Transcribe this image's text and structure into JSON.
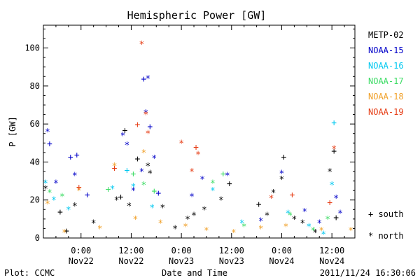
{
  "chart_data": {
    "type": "scatter",
    "title": "Hemispheric Power [GW]",
    "ylabel": "P [GW]",
    "xlabel": "Date and Time",
    "footer_left": "Plot: CCMC",
    "footer_right": "2011/11/24 16:30:06",
    "ylim": [
      0,
      112
    ],
    "xlim": [
      "2011-11-21T15:00",
      "2011-11-24T17:30"
    ],
    "yticks": [
      0,
      20,
      40,
      60,
      80,
      100
    ],
    "xticks": [
      {
        "time": "2011-11-22T00:00",
        "line1": "0:00",
        "line2": "Nov22"
      },
      {
        "time": "2011-11-22T12:00",
        "line1": "12:00",
        "line2": "Nov22"
      },
      {
        "time": "2011-11-23T00:00",
        "line1": "0:00",
        "line2": "Nov23"
      },
      {
        "time": "2011-11-23T12:00",
        "line1": "12:00",
        "line2": "Nov23"
      },
      {
        "time": "2011-11-24T00:00",
        "line1": "0:00",
        "line2": "Nov24"
      },
      {
        "time": "2011-11-24T12:00",
        "line1": "12:00",
        "line2": "Nov24"
      }
    ],
    "markers": {
      "south": "+",
      "north": "*"
    },
    "marker_legend": [
      {
        "symbol": "+",
        "label": "south"
      },
      {
        "symbol": "*",
        "label": "north"
      }
    ],
    "series": [
      {
        "name": "METP-02",
        "color": "#000000",
        "points": [
          {
            "t": "2011-11-21T15:30",
            "p": 26,
            "hemi": "north"
          },
          {
            "t": "2011-11-21T19:00",
            "p": 14,
            "hemi": "south"
          },
          {
            "t": "2011-11-21T20:30",
            "p": 4,
            "hemi": "south"
          },
          {
            "t": "2011-11-21T22:30",
            "p": 17,
            "hemi": "north"
          },
          {
            "t": "2011-11-22T03:00",
            "p": 8,
            "hemi": "north"
          },
          {
            "t": "2011-11-22T08:30",
            "p": 20,
            "hemi": "north"
          },
          {
            "t": "2011-11-22T09:30",
            "p": 22,
            "hemi": "south"
          },
          {
            "t": "2011-11-22T10:30",
            "p": 57,
            "hemi": "south"
          },
          {
            "t": "2011-11-22T11:30",
            "p": 17,
            "hemi": "north"
          },
          {
            "t": "2011-11-22T13:30",
            "p": 42,
            "hemi": "south"
          },
          {
            "t": "2011-11-22T16:00",
            "p": 38,
            "hemi": "north"
          },
          {
            "t": "2011-11-22T16:30",
            "p": 34,
            "hemi": "north"
          },
          {
            "t": "2011-11-22T19:30",
            "p": 16,
            "hemi": "north"
          },
          {
            "t": "2011-11-22T22:30",
            "p": 5,
            "hemi": "north"
          },
          {
            "t": "2011-11-23T01:30",
            "p": 10,
            "hemi": "north"
          },
          {
            "t": "2011-11-23T03:00",
            "p": 12,
            "hemi": "north"
          },
          {
            "t": "2011-11-23T05:30",
            "p": 15,
            "hemi": "north"
          },
          {
            "t": "2011-11-23T09:30",
            "p": 20,
            "hemi": "north"
          },
          {
            "t": "2011-11-23T11:30",
            "p": 29,
            "hemi": "south"
          },
          {
            "t": "2011-11-23T18:30",
            "p": 18,
            "hemi": "south"
          },
          {
            "t": "2011-11-23T22:00",
            "p": 24,
            "hemi": "north"
          },
          {
            "t": "2011-11-23T20:30",
            "p": 12,
            "hemi": "north"
          },
          {
            "t": "2011-11-24T00:00",
            "p": 31,
            "hemi": "north"
          },
          {
            "t": "2011-11-24T00:30",
            "p": 43,
            "hemi": "south"
          },
          {
            "t": "2011-11-24T03:00",
            "p": 10,
            "hemi": "north"
          },
          {
            "t": "2011-11-24T05:00",
            "p": 8,
            "hemi": "north"
          },
          {
            "t": "2011-11-24T08:00",
            "p": 3,
            "hemi": "north"
          },
          {
            "t": "2011-11-24T11:30",
            "p": 35,
            "hemi": "north"
          },
          {
            "t": "2011-11-24T12:30",
            "p": 46,
            "hemi": "south"
          },
          {
            "t": "2011-11-24T13:00",
            "p": 11,
            "hemi": "south"
          }
        ]
      },
      {
        "name": "NOAA-15",
        "color": "#0000c8",
        "points": [
          {
            "t": "2011-11-21T16:00",
            "p": 56,
            "hemi": "north"
          },
          {
            "t": "2011-11-21T16:30",
            "p": 50,
            "hemi": "south"
          },
          {
            "t": "2011-11-21T18:00",
            "p": 29,
            "hemi": "north"
          },
          {
            "t": "2011-11-21T21:30",
            "p": 43,
            "hemi": "south"
          },
          {
            "t": "2011-11-21T22:30",
            "p": 33,
            "hemi": "north"
          },
          {
            "t": "2011-11-21T23:00",
            "p": 44,
            "hemi": "south"
          },
          {
            "t": "2011-11-22T01:30",
            "p": 23,
            "hemi": "south"
          },
          {
            "t": "2011-11-22T10:00",
            "p": 54,
            "hemi": "north"
          },
          {
            "t": "2011-11-22T11:00",
            "p": 49,
            "hemi": "north"
          },
          {
            "t": "2011-11-22T12:30",
            "p": 25,
            "hemi": "north"
          },
          {
            "t": "2011-11-22T14:30",
            "p": 35,
            "hemi": "north"
          },
          {
            "t": "2011-11-22T15:00",
            "p": 84,
            "hemi": "south"
          },
          {
            "t": "2011-11-22T16:00",
            "p": 84,
            "hemi": "north"
          },
          {
            "t": "2011-11-22T16:30",
            "p": 59,
            "hemi": "south"
          },
          {
            "t": "2011-11-22T15:30",
            "p": 66,
            "hemi": "north"
          },
          {
            "t": "2011-11-22T17:30",
            "p": 42,
            "hemi": "north"
          },
          {
            "t": "2011-11-22T18:30",
            "p": 24,
            "hemi": "south"
          },
          {
            "t": "2011-11-23T02:30",
            "p": 22,
            "hemi": "north"
          },
          {
            "t": "2011-11-23T05:00",
            "p": 31,
            "hemi": "north"
          },
          {
            "t": "2011-11-23T11:00",
            "p": 33,
            "hemi": "north"
          },
          {
            "t": "2011-11-23T19:00",
            "p": 9,
            "hemi": "north"
          },
          {
            "t": "2011-11-24T00:00",
            "p": 34,
            "hemi": "north"
          },
          {
            "t": "2011-11-24T05:30",
            "p": 14,
            "hemi": "north"
          },
          {
            "t": "2011-11-24T09:00",
            "p": 8,
            "hemi": "north"
          },
          {
            "t": "2011-11-24T13:00",
            "p": 21,
            "hemi": "north"
          },
          {
            "t": "2011-11-24T14:00",
            "p": 13,
            "hemi": "north"
          }
        ]
      },
      {
        "name": "NOAA-16",
        "color": "#00c8f0",
        "points": [
          {
            "t": "2011-11-21T15:30",
            "p": 29,
            "hemi": "north"
          },
          {
            "t": "2011-11-21T17:30",
            "p": 20,
            "hemi": "north"
          },
          {
            "t": "2011-11-21T21:00",
            "p": 15,
            "hemi": "north"
          },
          {
            "t": "2011-11-22T07:30",
            "p": 26,
            "hemi": "north"
          },
          {
            "t": "2011-11-22T11:00",
            "p": 36,
            "hemi": "south"
          },
          {
            "t": "2011-11-22T12:30",
            "p": 27,
            "hemi": "north"
          },
          {
            "t": "2011-11-22T17:00",
            "p": 16,
            "hemi": "north"
          },
          {
            "t": "2011-11-23T07:30",
            "p": 25,
            "hemi": "north"
          },
          {
            "t": "2011-11-23T14:30",
            "p": 8,
            "hemi": "north"
          },
          {
            "t": "2011-11-24T01:30",
            "p": 13,
            "hemi": "north"
          },
          {
            "t": "2011-11-24T06:30",
            "p": 6,
            "hemi": "north"
          },
          {
            "t": "2011-11-24T12:00",
            "p": 28,
            "hemi": "north"
          },
          {
            "t": "2011-11-24T12:30",
            "p": 61,
            "hemi": "south"
          },
          {
            "t": "2011-11-24T10:00",
            "p": 2,
            "hemi": "north"
          }
        ]
      },
      {
        "name": "NOAA-17",
        "color": "#3cdc64",
        "points": [
          {
            "t": "2011-11-21T16:30",
            "p": 24,
            "hemi": "north"
          },
          {
            "t": "2011-11-21T19:30",
            "p": 22,
            "hemi": "north"
          },
          {
            "t": "2011-11-22T06:30",
            "p": 26,
            "hemi": "south"
          },
          {
            "t": "2011-11-22T12:30",
            "p": 34,
            "hemi": "south"
          },
          {
            "t": "2011-11-22T15:00",
            "p": 28,
            "hemi": "north"
          },
          {
            "t": "2011-11-22T17:30",
            "p": 25,
            "hemi": "south"
          },
          {
            "t": "2011-11-23T07:30",
            "p": 29,
            "hemi": "north"
          },
          {
            "t": "2011-11-23T10:00",
            "p": 34,
            "hemi": "south"
          },
          {
            "t": "2011-11-23T15:00",
            "p": 6,
            "hemi": "north"
          },
          {
            "t": "2011-11-24T02:00",
            "p": 12,
            "hemi": "north"
          },
          {
            "t": "2011-11-24T07:30",
            "p": 4,
            "hemi": "north"
          },
          {
            "t": "2011-11-24T11:00",
            "p": 10,
            "hemi": "north"
          }
        ]
      },
      {
        "name": "NOAA-18",
        "color": "#f0a028",
        "points": [
          {
            "t": "2011-11-21T16:00",
            "p": 18,
            "hemi": "north"
          },
          {
            "t": "2011-11-21T20:00",
            "p": 3,
            "hemi": "north"
          },
          {
            "t": "2011-11-21T23:30",
            "p": 25,
            "hemi": "north"
          },
          {
            "t": "2011-11-22T04:30",
            "p": 5,
            "hemi": "north"
          },
          {
            "t": "2011-11-22T08:00",
            "p": 38,
            "hemi": "north"
          },
          {
            "t": "2011-11-22T13:00",
            "p": 10,
            "hemi": "north"
          },
          {
            "t": "2011-11-22T15:00",
            "p": 45,
            "hemi": "north"
          },
          {
            "t": "2011-11-22T19:00",
            "p": 8,
            "hemi": "north"
          },
          {
            "t": "2011-11-23T01:00",
            "p": 6,
            "hemi": "north"
          },
          {
            "t": "2011-11-23T06:00",
            "p": 4,
            "hemi": "north"
          },
          {
            "t": "2011-11-23T12:30",
            "p": 3,
            "hemi": "north"
          },
          {
            "t": "2011-11-23T19:00",
            "p": 5,
            "hemi": "north"
          },
          {
            "t": "2011-11-24T01:00",
            "p": 6,
            "hemi": "north"
          },
          {
            "t": "2011-11-24T09:30",
            "p": 4,
            "hemi": "north"
          },
          {
            "t": "2011-11-24T16:30",
            "p": 4,
            "hemi": "north"
          }
        ]
      },
      {
        "name": "NOAA-19",
        "color": "#e63c14",
        "points": [
          {
            "t": "2011-11-21T23:30",
            "p": 27,
            "hemi": "south"
          },
          {
            "t": "2011-11-22T08:00",
            "p": 37,
            "hemi": "south"
          },
          {
            "t": "2011-11-22T13:30",
            "p": 60,
            "hemi": "south"
          },
          {
            "t": "2011-11-22T14:30",
            "p": 102,
            "hemi": "north"
          },
          {
            "t": "2011-11-22T15:30",
            "p": 65,
            "hemi": "north"
          },
          {
            "t": "2011-11-22T16:00",
            "p": 55,
            "hemi": "north"
          },
          {
            "t": "2011-11-23T00:00",
            "p": 50,
            "hemi": "north"
          },
          {
            "t": "2011-11-23T02:30",
            "p": 35,
            "hemi": "north"
          },
          {
            "t": "2011-11-23T03:30",
            "p": 48,
            "hemi": "south"
          },
          {
            "t": "2011-11-23T04:00",
            "p": 44,
            "hemi": "north"
          },
          {
            "t": "2011-11-23T21:30",
            "p": 21,
            "hemi": "north"
          },
          {
            "t": "2011-11-24T02:30",
            "p": 23,
            "hemi": "south"
          },
          {
            "t": "2011-11-24T12:30",
            "p": 47,
            "hemi": "north"
          },
          {
            "t": "2011-11-24T11:30",
            "p": 19,
            "hemi": "south"
          }
        ]
      }
    ]
  }
}
